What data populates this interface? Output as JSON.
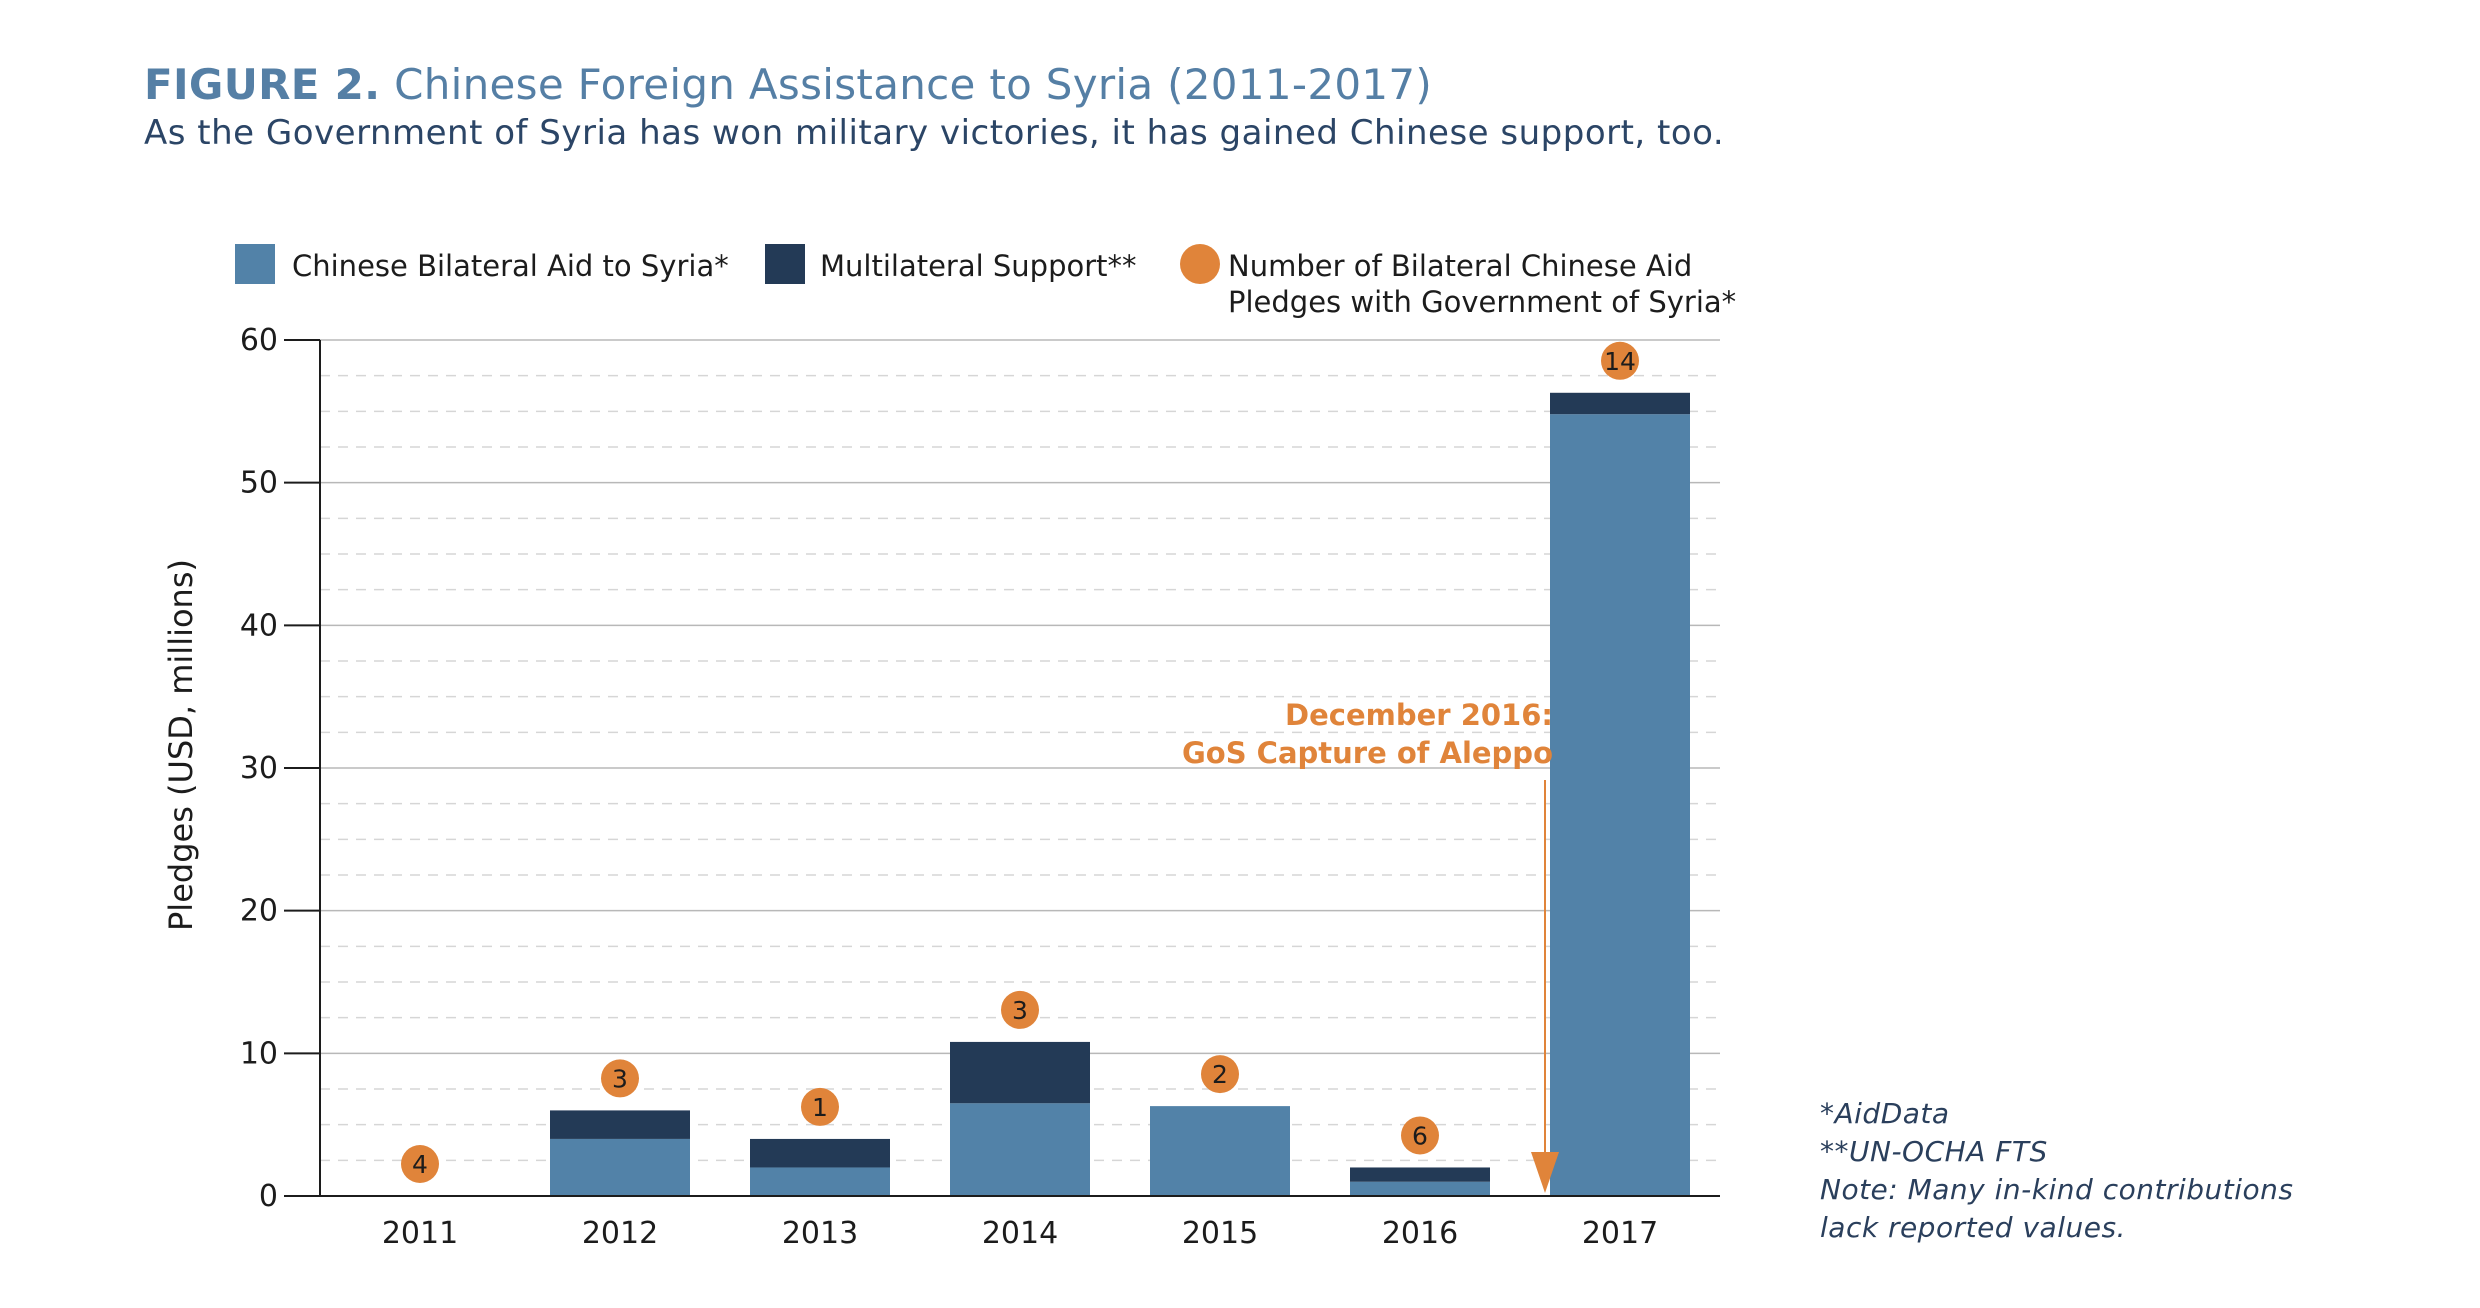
{
  "header": {
    "figure_label": "FIGURE 2.",
    "title": "Chinese Foreign Assistance to Syria (2011-2017)",
    "subtitle": "As the Government of Syria has won military victories, it has gained Chinese support, too."
  },
  "legend": {
    "bilateral": "Chinese Bilateral Aid to Syria*",
    "multilateral": "Multilateral Support**",
    "pledges_line1": "Number of Bilateral Chinese Aid",
    "pledges_line2": "Pledges with Government of Syria*"
  },
  "annotation": {
    "line1": "December 2016:",
    "line2": "GoS Capture of Aleppo"
  },
  "notes": {
    "source1": "*AidData",
    "source2": "**UN-OCHA FTS",
    "note_line1": "Note: Many in-kind contributions",
    "note_line2": "lack reported values."
  },
  "colors": {
    "bilateral": "#5282a8",
    "multilateral": "#233a56",
    "pledges": "#e0843a",
    "annotation": "#e0843a",
    "title": "#557fa5"
  },
  "chart_data": {
    "type": "bar",
    "stacked": true,
    "categories": [
      "2011",
      "2012",
      "2013",
      "2014",
      "2015",
      "2016",
      "2017"
    ],
    "series": [
      {
        "name": "Chinese Bilateral Aid to Syria*",
        "values": [
          0,
          4,
          2,
          6.5,
          6.3,
          1,
          54.8
        ]
      },
      {
        "name": "Multilateral Support**",
        "values": [
          0,
          2,
          2,
          4.3,
          0,
          1,
          1.5
        ]
      }
    ],
    "markers": {
      "name": "Number of Bilateral Chinese Aid Pledges with Government of Syria*",
      "values": [
        4,
        3,
        1,
        3,
        2,
        6,
        14
      ]
    },
    "ylabel": "Pledges (USD, millions)",
    "ylim": [
      0,
      60
    ],
    "yticks": [
      0,
      10,
      20,
      30,
      40,
      50,
      60
    ],
    "grid": true,
    "legend_position": "top"
  }
}
